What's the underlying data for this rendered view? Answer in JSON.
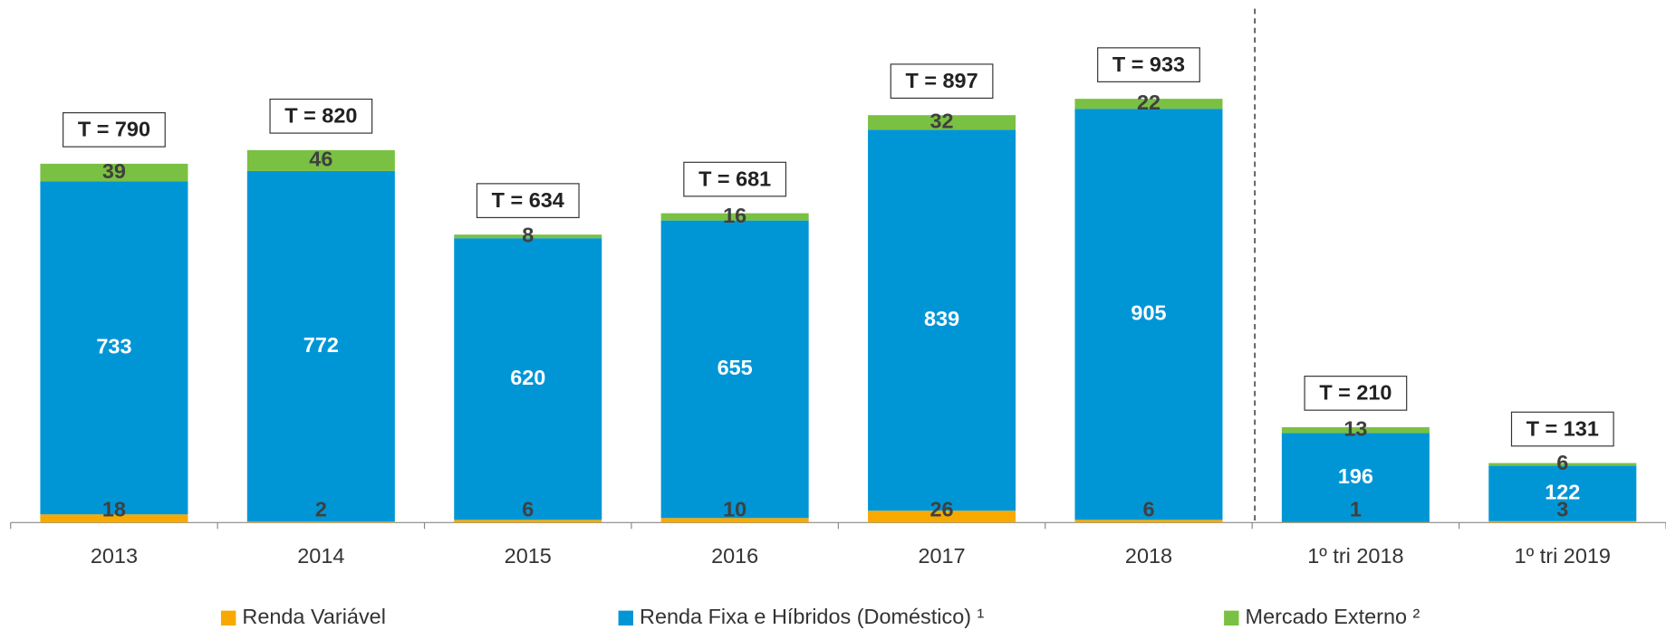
{
  "chart_data": {
    "type": "stacked_bar",
    "categories": [
      "2013",
      "2014",
      "2015",
      "2016",
      "2017",
      "2018",
      "1º tri 2018",
      "1º tri 2019"
    ],
    "series": [
      {
        "name": "Renda Variável",
        "color": "#f7a900",
        "label_color": "#404040",
        "values": [
          18,
          2,
          6,
          10,
          26,
          6,
          1,
          3
        ]
      },
      {
        "name": "Renda Fixa e Híbridos (Doméstico) ¹",
        "color": "#0096d6",
        "label_color": "#ffffff",
        "values": [
          733,
          772,
          620,
          655,
          839,
          905,
          196,
          122
        ]
      },
      {
        "name": "Mercado Externo ²",
        "color": "#7ac143",
        "label_color": "#404040",
        "values": [
          39,
          46,
          8,
          16,
          32,
          22,
          13,
          6
        ]
      }
    ],
    "totals": {
      "values": [
        790,
        820,
        634,
        681,
        897,
        933,
        210,
        131
      ],
      "value_labels": [
        "T = 790",
        "T = 820",
        "T = 634",
        "T = 681",
        "T = 897",
        "T = 933",
        "T = 210",
        "T = 131"
      ]
    },
    "ylim": [
      0,
      1150
    ],
    "legend": "bottom"
  }
}
